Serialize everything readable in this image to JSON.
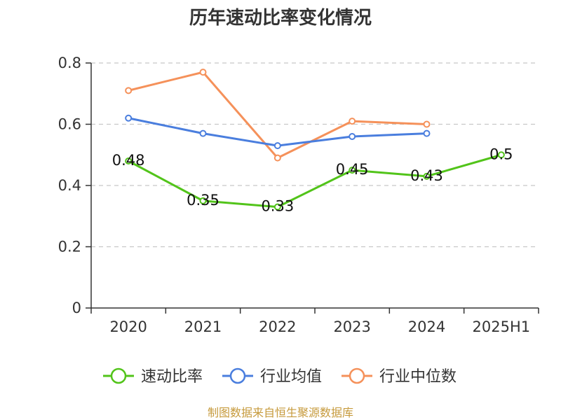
{
  "chart_data": {
    "type": "line",
    "title": "历年速动比率变化情况",
    "categories": [
      "2020",
      "2021",
      "2022",
      "2023",
      "2024",
      "2025H1"
    ],
    "ylim": [
      0,
      0.8
    ],
    "yticks": [
      "0",
      "0.2",
      "0.4",
      "0.6",
      "0.8"
    ],
    "grid": true,
    "legend_position": "bottom",
    "series": [
      {
        "name": "速动比率",
        "color": "#52c41a",
        "values": [
          0.48,
          0.35,
          0.33,
          0.45,
          0.43,
          0.5
        ],
        "labels": [
          "0.48",
          "0.35",
          "0.33",
          "0.45",
          "0.43",
          "0.5"
        ]
      },
      {
        "name": "行业均值",
        "color": "#4a7ede",
        "values": [
          0.62,
          0.57,
          0.53,
          0.56,
          0.57,
          null
        ]
      },
      {
        "name": "行业中位数",
        "color": "#f5915a",
        "values": [
          0.71,
          0.77,
          0.49,
          0.61,
          0.6,
          null
        ]
      }
    ]
  },
  "source": "制图数据来自恒生聚源数据库"
}
